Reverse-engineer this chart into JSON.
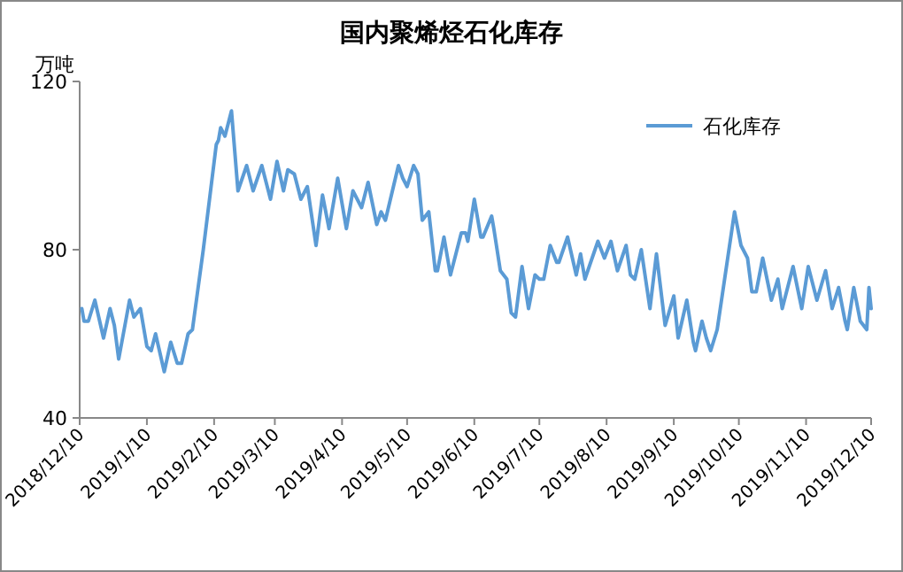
{
  "chart_data": {
    "type": "line",
    "title": "国内聚烯烃石化库存",
    "ylabel": "万吨",
    "ylim": [
      40,
      120
    ],
    "yticks": [
      40,
      80,
      120
    ],
    "xlim": [
      "2018-12-10",
      "2019-12-10"
    ],
    "xticks": [
      {
        "value": "2018-12-10",
        "label": "2018/12/10"
      },
      {
        "value": "2019-01-10",
        "label": "2019/1/10"
      },
      {
        "value": "2019-02-10",
        "label": "2019/2/10"
      },
      {
        "value": "2019-03-10",
        "label": "2019/3/10"
      },
      {
        "value": "2019-04-10",
        "label": "2019/4/10"
      },
      {
        "value": "2019-05-10",
        "label": "2019/5/10"
      },
      {
        "value": "2019-06-10",
        "label": "2019/6/10"
      },
      {
        "value": "2019-07-10",
        "label": "2019/7/10"
      },
      {
        "value": "2019-08-10",
        "label": "2019/8/10"
      },
      {
        "value": "2019-09-10",
        "label": "2019/9/10"
      },
      {
        "value": "2019-10-10",
        "label": "2019/10/10"
      },
      {
        "value": "2019-11-10",
        "label": "2019/11/10"
      },
      {
        "value": "2019-12-10",
        "label": "2019/12/10"
      }
    ],
    "grid": false,
    "legend": "top right",
    "marker": "none",
    "line_style": "solid",
    "x": [
      "2018-12-11",
      "2018-12-12",
      "2018-12-14",
      "2018-12-17",
      "2018-12-21",
      "2018-12-24",
      "2018-12-26",
      "2018-12-28",
      "2019-01-02",
      "2019-01-04",
      "2019-01-07",
      "2019-01-10",
      "2019-01-12",
      "2019-01-14",
      "2019-01-18",
      "2019-01-21",
      "2019-01-24",
      "2019-01-26",
      "2019-01-29",
      "2019-01-31",
      "2019-02-05",
      "2019-02-11",
      "2019-02-12",
      "2019-02-13",
      "2019-02-15",
      "2019-02-18",
      "2019-02-21",
      "2019-02-25",
      "2019-02-28",
      "2019-03-04",
      "2019-03-08",
      "2019-03-11",
      "2019-03-14",
      "2019-03-16",
      "2019-03-19",
      "2019-03-22",
      "2019-03-25",
      "2019-03-29",
      "2019-04-01",
      "2019-04-04",
      "2019-04-08",
      "2019-04-12",
      "2019-04-15",
      "2019-04-18",
      "2019-04-19",
      "2019-04-22",
      "2019-04-26",
      "2019-04-28",
      "2019-04-30",
      "2019-05-06",
      "2019-05-08",
      "2019-05-10",
      "2019-05-13",
      "2019-05-15",
      "2019-05-17",
      "2019-05-20",
      "2019-05-23",
      "2019-05-24",
      "2019-05-27",
      "2019-05-30",
      "2019-06-04",
      "2019-06-06",
      "2019-06-07",
      "2019-06-10",
      "2019-06-13",
      "2019-06-14",
      "2019-06-18",
      "2019-06-19",
      "2019-06-22",
      "2019-06-25",
      "2019-06-27",
      "2019-06-29",
      "2019-07-02",
      "2019-07-05",
      "2019-07-08",
      "2019-07-10",
      "2019-07-12",
      "2019-07-15",
      "2019-07-18",
      "2019-07-19",
      "2019-07-23",
      "2019-07-27",
      "2019-07-29",
      "2019-07-31",
      "2019-08-02",
      "2019-08-06",
      "2019-08-09",
      "2019-08-12",
      "2019-08-15",
      "2019-08-19",
      "2019-08-21",
      "2019-08-23",
      "2019-08-26",
      "2019-08-30",
      "2019-09-02",
      "2019-09-06",
      "2019-09-10",
      "2019-09-12",
      "2019-09-16",
      "2019-09-19",
      "2019-09-20",
      "2019-09-23",
      "2019-09-25",
      "2019-09-27",
      "2019-09-30",
      "2019-10-08",
      "2019-10-11",
      "2019-10-14",
      "2019-10-16",
      "2019-10-18",
      "2019-10-21",
      "2019-10-25",
      "2019-10-28",
      "2019-10-30",
      "2019-11-04",
      "2019-11-08",
      "2019-11-11",
      "2019-11-15",
      "2019-11-19",
      "2019-11-22",
      "2019-11-25",
      "2019-11-28",
      "2019-11-29",
      "2019-12-02",
      "2019-12-05",
      "2019-12-08",
      "2019-12-09",
      "2019-12-10"
    ],
    "series": [
      {
        "name": "石化库存",
        "color": "#5b9bd5",
        "values": [
          66,
          63,
          63,
          68,
          59,
          66,
          62,
          54,
          68,
          64,
          66,
          57,
          56,
          60,
          51,
          58,
          53,
          53,
          60,
          61,
          80,
          105,
          106,
          109,
          107,
          113,
          94,
          100,
          94,
          100,
          92,
          101,
          94,
          99,
          98,
          92,
          95,
          81,
          93,
          85,
          97,
          85,
          94,
          91,
          90,
          96,
          86,
          89,
          87,
          100,
          97,
          95,
          100,
          98,
          87,
          89,
          75,
          75,
          83,
          74,
          84,
          84,
          82,
          92,
          83,
          83,
          88,
          85,
          75,
          73,
          65,
          64,
          76,
          66,
          74,
          73,
          73,
          81,
          77,
          77,
          83,
          74,
          79,
          73,
          76,
          82,
          78,
          82,
          75,
          81,
          74,
          73,
          80,
          66,
          79,
          62,
          69,
          59,
          68,
          58,
          56,
          63,
          59,
          56,
          61,
          89,
          81,
          78,
          70,
          70,
          78,
          68,
          73,
          66,
          76,
          66,
          76,
          68,
          75,
          66,
          71,
          63,
          61,
          71,
          63,
          61,
          71,
          66
        ]
      }
    ]
  }
}
